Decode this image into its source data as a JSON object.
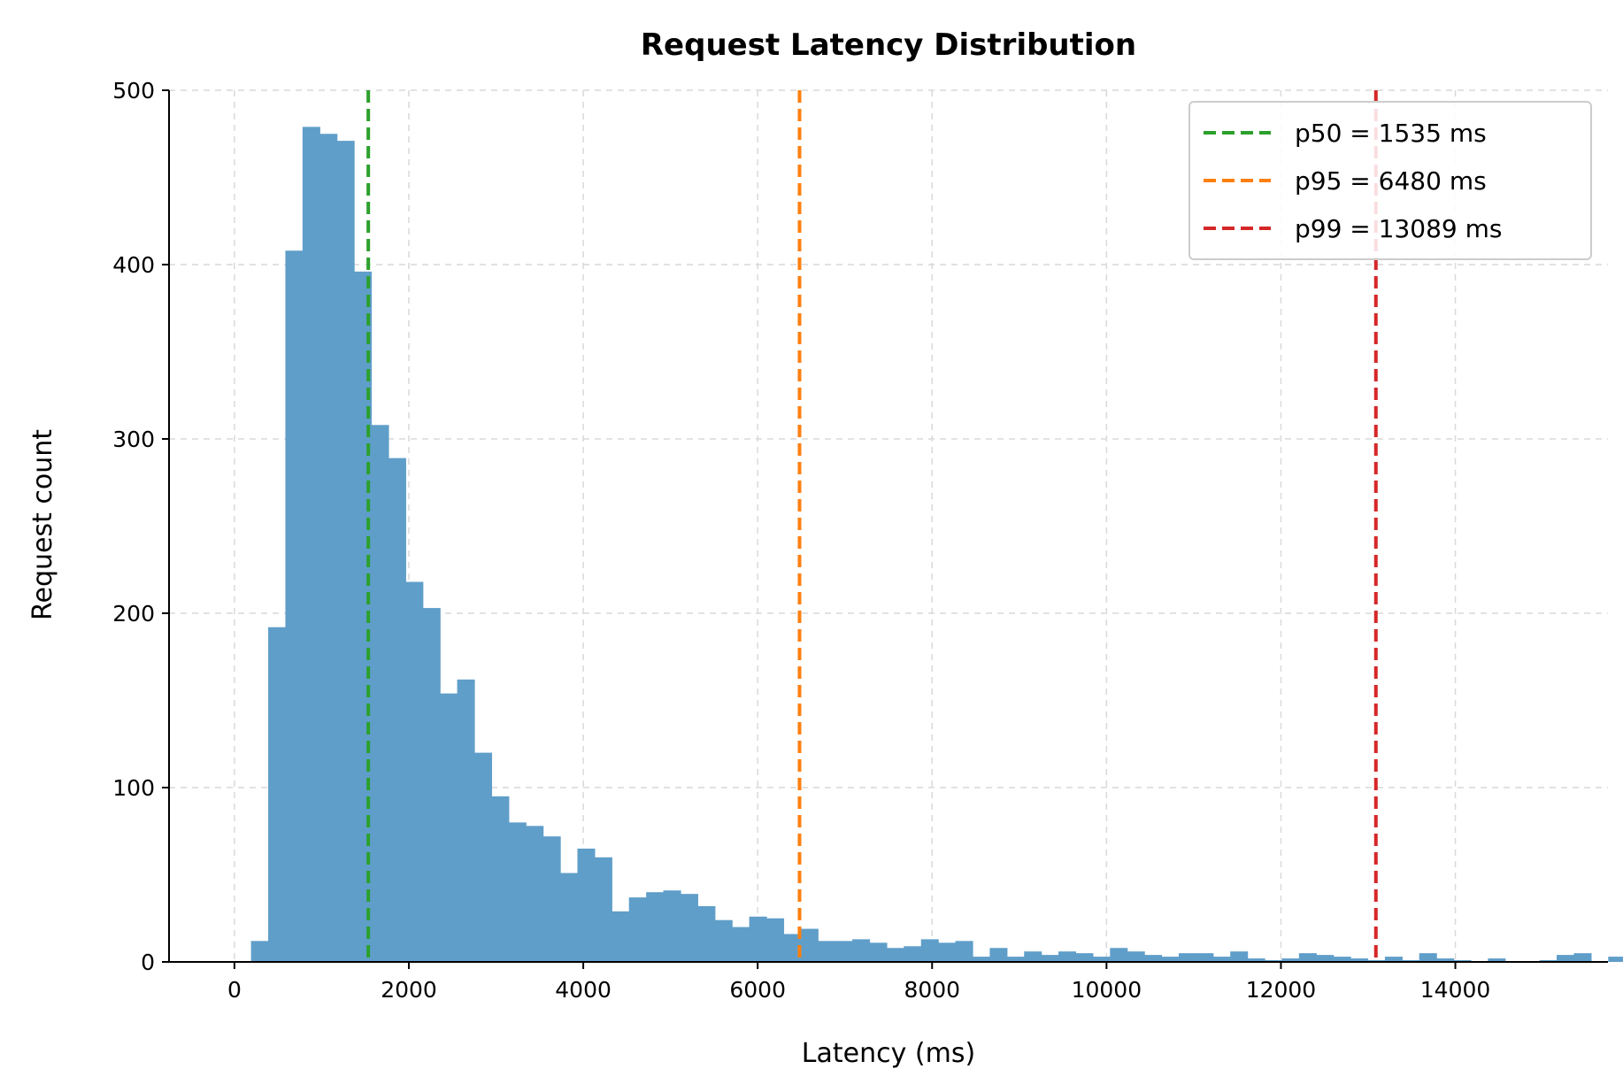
{
  "chart_data": {
    "type": "bar",
    "title": "Request Latency Distribution",
    "xlabel": "Latency (ms)",
    "ylabel": "Request count",
    "xlim": [
      -750,
      15750
    ],
    "ylim": [
      0,
      500
    ],
    "xticks": [
      0,
      2000,
      4000,
      6000,
      8000,
      10000,
      12000,
      14000
    ],
    "xtick_labels": [
      "0",
      "2000",
      "4000",
      "6000",
      "8000",
      "10000",
      "12000",
      "14000"
    ],
    "yticks": [
      0,
      100,
      200,
      300,
      400,
      500
    ],
    "ytick_labels": [
      "0",
      "100",
      "200",
      "300",
      "400",
      "500"
    ],
    "grid": true,
    "bar_color": "#5f9ec9",
    "bin_start": 190,
    "bin_width": 197,
    "counts": [
      12,
      192,
      408,
      479,
      475,
      471,
      396,
      308,
      289,
      218,
      203,
      154,
      162,
      120,
      95,
      80,
      78,
      72,
      51,
      65,
      60,
      29,
      37,
      40,
      41,
      39,
      32,
      24,
      20,
      26,
      25,
      16,
      19,
      12,
      12,
      13,
      11,
      8,
      9,
      13,
      11,
      12,
      3,
      8,
      3,
      6,
      4,
      6,
      5,
      3,
      8,
      6,
      4,
      3,
      5,
      5,
      3,
      6,
      2,
      1,
      2,
      5,
      4,
      3,
      2,
      1,
      3,
      1,
      5,
      2,
      1,
      0,
      2,
      0,
      0,
      1,
      4,
      5,
      0,
      3
    ],
    "percentiles": [
      {
        "name": "p50 = 1535 ms",
        "value": 1535,
        "color": "#2ca02c"
      },
      {
        "name": "p95 = 6480 ms",
        "value": 6480,
        "color": "#ff7f0e"
      },
      {
        "name": "p99 = 13089 ms",
        "value": 13089,
        "color": "#d62728"
      }
    ],
    "legend_position": "top-right"
  }
}
